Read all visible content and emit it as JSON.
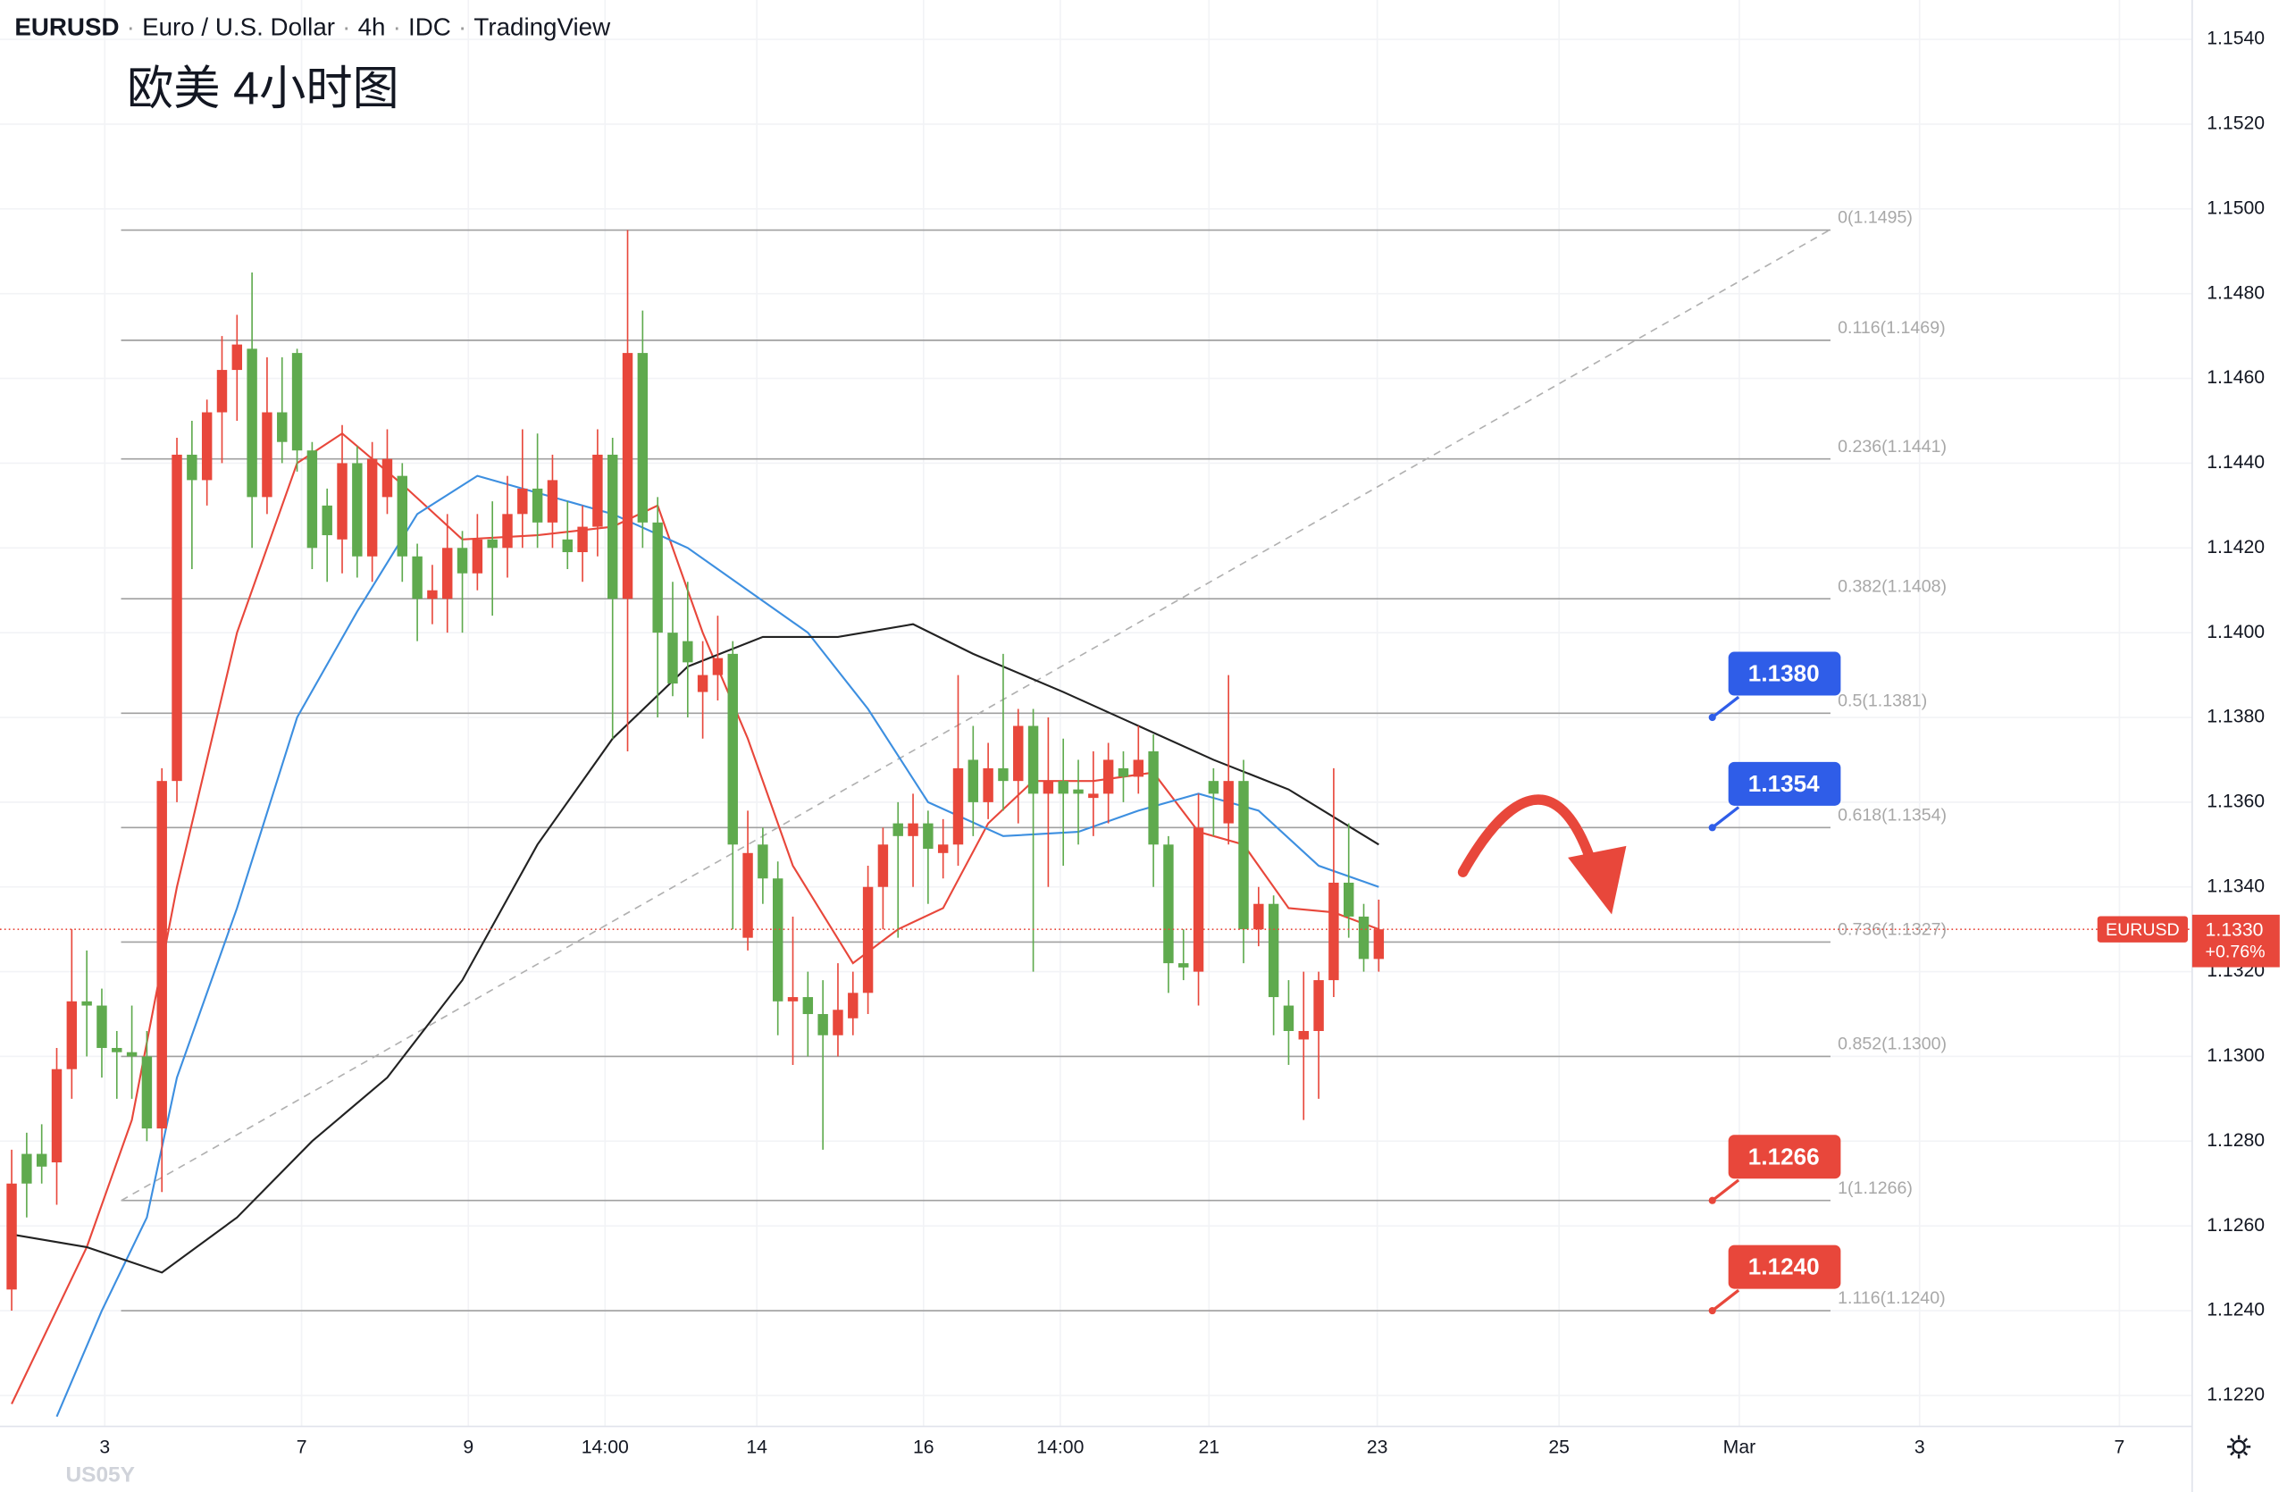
{
  "chart_data": {
    "type": "candlestick",
    "header": [
      "EURUSD",
      "Euro / U.S. Dollar",
      "4h",
      "IDC",
      "TradingView"
    ],
    "title": "欧美 4小时图",
    "up_color": "#e8473b",
    "down_color": "#5faa4e",
    "ylim": [
      1.12127,
      1.15493
    ],
    "yticks": [
      {
        "value": 1.122,
        "label": "1.1220"
      },
      {
        "value": 1.124,
        "label": "1.1240"
      },
      {
        "value": 1.126,
        "label": "1.1260"
      },
      {
        "value": 1.128,
        "label": "1.1280"
      },
      {
        "value": 1.13,
        "label": "1.1300"
      },
      {
        "value": 1.132,
        "label": "1.1320"
      },
      {
        "value": 1.134,
        "label": "1.1340"
      },
      {
        "value": 1.136,
        "label": "1.1360"
      },
      {
        "value": 1.138,
        "label": "1.1380"
      },
      {
        "value": 1.14,
        "label": "1.1400"
      },
      {
        "value": 1.142,
        "label": "1.1420"
      },
      {
        "value": 1.144,
        "label": "1.1440"
      },
      {
        "value": 1.146,
        "label": "1.1460"
      },
      {
        "value": 1.148,
        "label": "1.1480"
      },
      {
        "value": 1.15,
        "label": "1.1500"
      },
      {
        "value": 1.152,
        "label": "1.1520"
      },
      {
        "value": 1.154,
        "label": "1.1540"
      }
    ],
    "xticks": [
      {
        "value": 6.2,
        "label": "3"
      },
      {
        "value": 19.3,
        "label": "7"
      },
      {
        "value": 30.4,
        "label": "9"
      },
      {
        "value": 39.5,
        "label": "14:00"
      },
      {
        "value": 49.6,
        "label": "14"
      },
      {
        "value": 60.7,
        "label": "16"
      },
      {
        "value": 69.8,
        "label": "14:00"
      },
      {
        "value": 79.7,
        "label": "21"
      },
      {
        "value": 90.9,
        "label": "23"
      },
      {
        "value": 103,
        "label": "25"
      },
      {
        "value": 115,
        "label": "Mar"
      },
      {
        "value": 127,
        "label": "3"
      },
      {
        "value": 140.3,
        "label": "7"
      }
    ],
    "grid": true,
    "ohlc": [
      [
        1.1245,
        1.1278,
        1.124,
        1.127
      ],
      [
        1.1277,
        1.1282,
        1.1262,
        1.127
      ],
      [
        1.1277,
        1.1284,
        1.127,
        1.1274
      ],
      [
        1.1275,
        1.1302,
        1.1265,
        1.1297
      ],
      [
        1.1297,
        1.133,
        1.129,
        1.1313
      ],
      [
        1.1313,
        1.1325,
        1.13,
        1.1312
      ],
      [
        1.1312,
        1.1316,
        1.1295,
        1.1302
      ],
      [
        1.1302,
        1.1306,
        1.129,
        1.1301
      ],
      [
        1.1301,
        1.1312,
        1.129,
        1.13
      ],
      [
        1.13,
        1.1306,
        1.128,
        1.1283
      ],
      [
        1.1283,
        1.1368,
        1.1268,
        1.1365
      ],
      [
        1.1365,
        1.1446,
        1.136,
        1.1442
      ],
      [
        1.1442,
        1.145,
        1.1415,
        1.1436
      ],
      [
        1.1436,
        1.1455,
        1.143,
        1.1452
      ],
      [
        1.1452,
        1.147,
        1.144,
        1.1462
      ],
      [
        1.1462,
        1.1475,
        1.145,
        1.1468
      ],
      [
        1.1467,
        1.1485,
        1.142,
        1.1432
      ],
      [
        1.1432,
        1.1465,
        1.1428,
        1.1452
      ],
      [
        1.1452,
        1.1465,
        1.144,
        1.1445
      ],
      [
        1.1466,
        1.1467,
        1.1438,
        1.1443
      ],
      [
        1.1443,
        1.1445,
        1.1415,
        1.142
      ],
      [
        1.143,
        1.1434,
        1.1412,
        1.1423
      ],
      [
        1.1422,
        1.1449,
        1.1414,
        1.144
      ],
      [
        1.144,
        1.1444,
        1.1413,
        1.1418
      ],
      [
        1.1418,
        1.1445,
        1.1412,
        1.1441
      ],
      [
        1.1432,
        1.1448,
        1.1428,
        1.1441
      ],
      [
        1.1437,
        1.144,
        1.1412,
        1.1418
      ],
      [
        1.1418,
        1.1421,
        1.1398,
        1.1408
      ],
      [
        1.1408,
        1.1416,
        1.1402,
        1.141
      ],
      [
        1.1408,
        1.1428,
        1.14,
        1.142
      ],
      [
        1.142,
        1.1424,
        1.14,
        1.1414
      ],
      [
        1.1414,
        1.1428,
        1.141,
        1.1422
      ],
      [
        1.1422,
        1.1431,
        1.1404,
        1.142
      ],
      [
        1.142,
        1.1437,
        1.1413,
        1.1428
      ],
      [
        1.1428,
        1.1448,
        1.142,
        1.1434
      ],
      [
        1.1434,
        1.1447,
        1.142,
        1.1426
      ],
      [
        1.1426,
        1.1442,
        1.142,
        1.1436
      ],
      [
        1.1422,
        1.1431,
        1.1415,
        1.1419
      ],
      [
        1.1419,
        1.143,
        1.1412,
        1.1425
      ],
      [
        1.1425,
        1.1448,
        1.1418,
        1.1442
      ],
      [
        1.1442,
        1.1446,
        1.1375,
        1.1408
      ],
      [
        1.1408,
        1.1495,
        1.1372,
        1.1466
      ],
      [
        1.1466,
        1.1476,
        1.142,
        1.1426
      ],
      [
        1.1426,
        1.1432,
        1.138,
        1.14
      ],
      [
        1.14,
        1.1412,
        1.1385,
        1.1388
      ],
      [
        1.1398,
        1.1412,
        1.138,
        1.1393
      ],
      [
        1.1386,
        1.1398,
        1.1375,
        1.139
      ],
      [
        1.139,
        1.1404,
        1.1384,
        1.1394
      ],
      [
        1.1395,
        1.1398,
        1.133,
        1.135
      ],
      [
        1.1328,
        1.1358,
        1.1325,
        1.1348
      ],
      [
        1.135,
        1.1354,
        1.1336,
        1.1342
      ],
      [
        1.1342,
        1.1346,
        1.1305,
        1.1313
      ],
      [
        1.1313,
        1.1333,
        1.1298,
        1.1314
      ],
      [
        1.1314,
        1.132,
        1.13,
        1.131
      ],
      [
        1.131,
        1.1318,
        1.1278,
        1.1305
      ],
      [
        1.1305,
        1.1322,
        1.13,
        1.1311
      ],
      [
        1.1309,
        1.132,
        1.1305,
        1.1315
      ],
      [
        1.1315,
        1.1345,
        1.131,
        1.134
      ],
      [
        1.134,
        1.1354,
        1.133,
        1.135
      ],
      [
        1.1355,
        1.136,
        1.1328,
        1.1352
      ],
      [
        1.1352,
        1.1362,
        1.134,
        1.1355
      ],
      [
        1.1355,
        1.1358,
        1.1336,
        1.1349
      ],
      [
        1.1348,
        1.1356,
        1.1342,
        1.135
      ],
      [
        1.135,
        1.139,
        1.1345,
        1.1368
      ],
      [
        1.137,
        1.1378,
        1.1352,
        1.136
      ],
      [
        1.136,
        1.1374,
        1.1356,
        1.1368
      ],
      [
        1.1368,
        1.1395,
        1.1358,
        1.1365
      ],
      [
        1.1365,
        1.1382,
        1.1355,
        1.1378
      ],
      [
        1.1378,
        1.1382,
        1.132,
        1.1362
      ],
      [
        1.1362,
        1.138,
        1.134,
        1.1365
      ],
      [
        1.1365,
        1.1375,
        1.1345,
        1.1362
      ],
      [
        1.1363,
        1.137,
        1.135,
        1.1362
      ],
      [
        1.1361,
        1.1372,
        1.1352,
        1.1362
      ],
      [
        1.1362,
        1.1374,
        1.1355,
        1.137
      ],
      [
        1.1368,
        1.1372,
        1.136,
        1.1366
      ],
      [
        1.1366,
        1.1378,
        1.1362,
        1.137
      ],
      [
        1.1372,
        1.1376,
        1.134,
        1.135
      ],
      [
        1.135,
        1.1352,
        1.1315,
        1.1322
      ],
      [
        1.1322,
        1.133,
        1.1318,
        1.1321
      ],
      [
        1.132,
        1.1362,
        1.1312,
        1.1354
      ],
      [
        1.1365,
        1.1368,
        1.1352,
        1.1362
      ],
      [
        1.1355,
        1.139,
        1.135,
        1.1365
      ],
      [
        1.1365,
        1.137,
        1.1322,
        1.133
      ],
      [
        1.133,
        1.134,
        1.1326,
        1.1336
      ],
      [
        1.1336,
        1.1338,
        1.1305,
        1.1314
      ],
      [
        1.1312,
        1.1318,
        1.1298,
        1.1306
      ],
      [
        1.1304,
        1.132,
        1.1285,
        1.1306
      ],
      [
        1.1306,
        1.132,
        1.129,
        1.1318
      ],
      [
        1.1318,
        1.1368,
        1.1314,
        1.1341
      ],
      [
        1.1341,
        1.1355,
        1.1328,
        1.1333
      ],
      [
        1.1333,
        1.1336,
        1.132,
        1.1323
      ],
      [
        1.1323,
        1.1337,
        1.132,
        1.133
      ]
    ],
    "series": [
      {
        "color": "#e8473b",
        "x": [
          0,
          5,
          8,
          11,
          15,
          19,
          22,
          26,
          30,
          35,
          40,
          43,
          46,
          49,
          52,
          56,
          59,
          62,
          65,
          68,
          72,
          76,
          79,
          82,
          85,
          88,
          91
        ],
        "values": [
          1.1218,
          1.1255,
          1.1285,
          1.134,
          1.14,
          1.144,
          1.1447,
          1.1435,
          1.1422,
          1.1423,
          1.1425,
          1.143,
          1.14,
          1.1375,
          1.1345,
          1.1322,
          1.133,
          1.1335,
          1.1355,
          1.1365,
          1.1365,
          1.1367,
          1.1353,
          1.135,
          1.1335,
          1.1334,
          1.133
        ]
      },
      {
        "color": "#3d8fe0",
        "x": [
          3,
          6,
          9,
          11,
          15,
          19,
          23,
          27,
          31,
          35,
          40,
          45,
          49,
          53,
          57,
          61,
          66,
          71,
          75,
          79,
          83,
          87,
          91
        ],
        "values": [
          1.1215,
          1.124,
          1.1262,
          1.1295,
          1.1335,
          1.138,
          1.1405,
          1.1428,
          1.1437,
          1.1433,
          1.1428,
          1.142,
          1.141,
          1.14,
          1.1382,
          1.136,
          1.1352,
          1.1353,
          1.1358,
          1.1362,
          1.1358,
          1.1345,
          1.134
        ]
      },
      {
        "color": "#222222",
        "x": [
          0,
          5,
          10,
          15,
          20,
          25,
          30,
          35,
          40,
          45,
          50,
          55,
          60,
          64,
          70,
          75,
          80,
          85,
          91
        ],
        "values": [
          1.1258,
          1.1255,
          1.1249,
          1.1262,
          1.128,
          1.1295,
          1.1318,
          1.135,
          1.1375,
          1.1392,
          1.1399,
          1.1399,
          1.1402,
          1.1395,
          1.1386,
          1.1378,
          1.137,
          1.1363,
          1.135
        ]
      }
    ],
    "fib_levels": [
      {
        "value": 1.1495,
        "label": "0(1.1495)"
      },
      {
        "value": 1.1469,
        "label": "0.116(1.1469)"
      },
      {
        "value": 1.1441,
        "label": "0.236(1.1441)"
      },
      {
        "value": 1.1408,
        "label": "0.382(1.1408)"
      },
      {
        "value": 1.1381,
        "label": "0.5(1.1381)"
      },
      {
        "value": 1.1354,
        "label": "0.618(1.1354)"
      },
      {
        "value": 1.1327,
        "label": "0.736(1.1327)"
      },
      {
        "value": 1.13,
        "label": "0.852(1.1300)"
      },
      {
        "value": 1.1266,
        "label": "1(1.1266)"
      },
      {
        "value": 1.124,
        "label": "1.116(1.1240)"
      }
    ],
    "trend_line": {
      "x": [
        7.3,
        121
      ],
      "values": [
        1.1266,
        1.1495
      ]
    },
    "callouts": [
      {
        "value": 1.138,
        "label": "1.1380",
        "color": "#2f5de8"
      },
      {
        "value": 1.1354,
        "label": "1.1354",
        "color": "#2f5de8"
      },
      {
        "value": 1.1266,
        "label": "1.1266",
        "color": "#e8473b"
      },
      {
        "value": 1.124,
        "label": "1.1240",
        "color": "#e8473b"
      }
    ],
    "last_price": {
      "value": 1.133,
      "label": "1.1330",
      "symbol": "EURUSD",
      "change": "+0.76%"
    },
    "watermark": "US05Y"
  }
}
